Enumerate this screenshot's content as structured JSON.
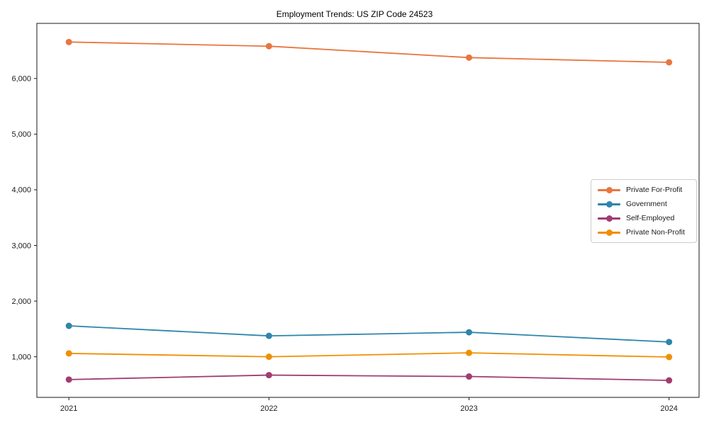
{
  "chart_data": {
    "type": "line",
    "title": "Employment Trends: US ZIP Code 24523",
    "xlabel": "",
    "ylabel": "",
    "x": [
      2021,
      2022,
      2023,
      2024
    ],
    "x_ticks": [
      {
        "value": 2021,
        "label": "2021"
      },
      {
        "value": 2022,
        "label": "2022"
      },
      {
        "value": 2023,
        "label": "2023"
      },
      {
        "value": 2024,
        "label": "2024"
      }
    ],
    "y_ticks": [
      {
        "value": 1000,
        "label": "1,000"
      },
      {
        "value": 2000,
        "label": "2,000"
      },
      {
        "value": 3000,
        "label": "3,000"
      },
      {
        "value": 4000,
        "label": "4,000"
      },
      {
        "value": 5000,
        "label": "5,000"
      },
      {
        "value": 6000,
        "label": "6,000"
      }
    ],
    "xlim": [
      2020.84,
      2024.15
    ],
    "ylim": [
      270,
      6990
    ],
    "grid": false,
    "legend_position": "center right",
    "series": [
      {
        "name": "Private For-Profit",
        "color": "#E8763E",
        "values": [
          6655,
          6580,
          6375,
          6290
        ]
      },
      {
        "name": "Government",
        "color": "#2E86AB",
        "values": [
          1555,
          1375,
          1440,
          1265
        ]
      },
      {
        "name": "Self-Employed",
        "color": "#A23B72",
        "values": [
          590,
          670,
          645,
          575
        ]
      },
      {
        "name": "Private Non-Profit",
        "color": "#F18F01",
        "values": [
          1060,
          1000,
          1070,
          995
        ]
      }
    ]
  }
}
